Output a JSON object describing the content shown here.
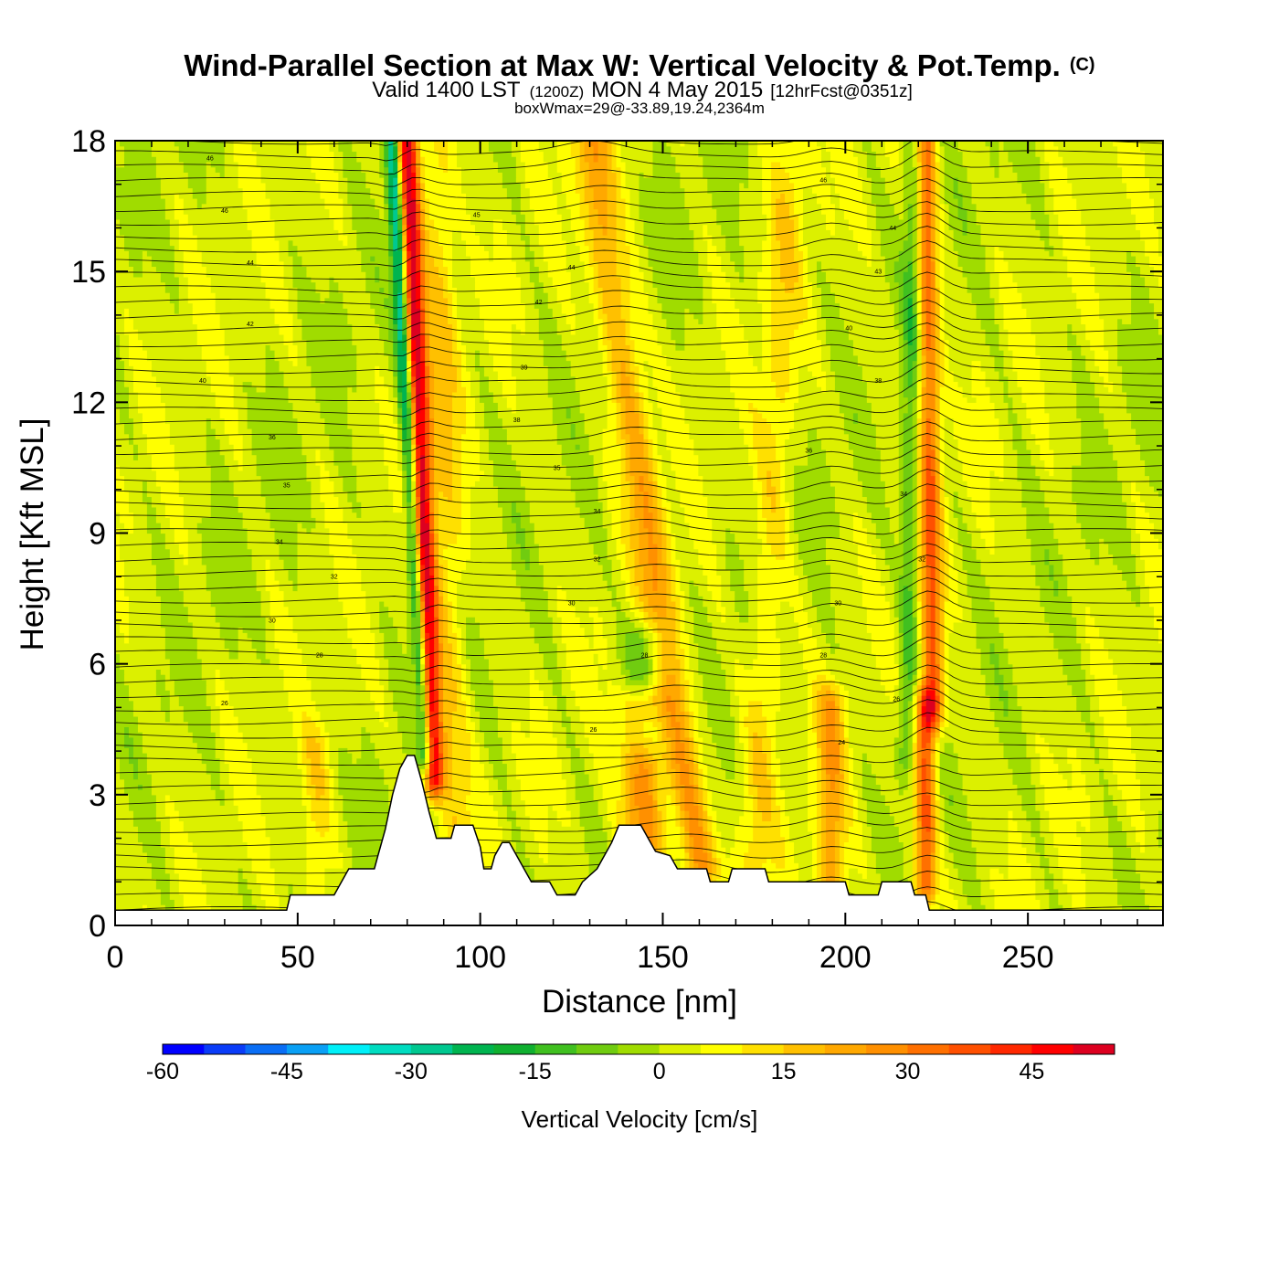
{
  "chart_data": {
    "type": "heatmap",
    "title": "Wind-Parallel Section at Max W: Vertical Velocity & Pot.Temp.",
    "title_mark": "(C)",
    "subtitle_main": "Valid 1400 LST",
    "subtitle_utc": "(1200Z)",
    "subtitle_date": "MON 4 May 2015",
    "subtitle_fcst": "[12hrFcst@0351z]",
    "note": "boxWmax=29@-33.89,19.24,2364m",
    "xlabel": "Distance [nm]",
    "ylabel": "Height [Kft MSL]",
    "xlim": [
      0,
      287
    ],
    "ylim": [
      0,
      18
    ],
    "xticks": [
      0,
      50,
      100,
      150,
      200,
      250
    ],
    "yticks": [
      0,
      3,
      6,
      9,
      12,
      15,
      18
    ],
    "xtick_labels": [
      "0",
      "50",
      "100",
      "150",
      "200",
      "250"
    ],
    "ytick_labels": [
      "0",
      "3",
      "6",
      "9",
      "12",
      "15",
      "18"
    ],
    "colorbar": {
      "title": "Vertical Velocity [cm/s]",
      "min": -60,
      "max": 55,
      "step": 5,
      "tick_values": [
        -60,
        -45,
        -30,
        -15,
        0,
        15,
        30,
        45
      ],
      "tick_labels": [
        "-60",
        "-45",
        "-30",
        "-15",
        "0",
        "15",
        "30",
        "45"
      ],
      "colors": [
        "#0000ff",
        "#0a3cf8",
        "#0a6ef5",
        "#0aa0f5",
        "#00f0f8",
        "#00dcc0",
        "#00c890",
        "#00b450",
        "#10b030",
        "#40c020",
        "#70cc10",
        "#a0dc00",
        "#dcf000",
        "#ffff00",
        "#ffe000",
        "#ffc000",
        "#ffa800",
        "#ff9000",
        "#ff7000",
        "#ff5000",
        "#ff2800",
        "#ff0000",
        "#dd0020"
      ]
    },
    "terrain": [
      [
        0,
        0.35
      ],
      [
        47,
        0.35
      ],
      [
        48,
        0.7
      ],
      [
        60,
        0.7
      ],
      [
        62,
        1.0
      ],
      [
        64,
        1.3
      ],
      [
        71,
        1.3
      ],
      [
        72,
        1.6
      ],
      [
        73,
        1.9
      ],
      [
        74,
        2.2
      ],
      [
        75,
        2.6
      ],
      [
        76,
        3.0
      ],
      [
        78,
        3.6
      ],
      [
        80,
        3.9
      ],
      [
        82,
        3.9
      ],
      [
        84,
        3.3
      ],
      [
        86,
        2.6
      ],
      [
        88,
        2.0
      ],
      [
        92,
        2.0
      ],
      [
        93,
        2.3
      ],
      [
        98,
        2.3
      ],
      [
        100,
        1.8
      ],
      [
        101,
        1.3
      ],
      [
        103,
        1.3
      ],
      [
        104,
        1.6
      ],
      [
        106,
        1.9
      ],
      [
        108,
        1.9
      ],
      [
        110,
        1.6
      ],
      [
        112,
        1.3
      ],
      [
        114,
        1.0
      ],
      [
        119,
        1.0
      ],
      [
        121,
        0.7
      ],
      [
        126,
        0.7
      ],
      [
        128,
        1.0
      ],
      [
        132,
        1.3
      ],
      [
        134,
        1.6
      ],
      [
        136,
        1.9
      ],
      [
        138,
        2.3
      ],
      [
        144,
        2.3
      ],
      [
        146,
        2.0
      ],
      [
        148,
        1.7
      ],
      [
        152,
        1.6
      ],
      [
        154,
        1.3
      ],
      [
        162,
        1.3
      ],
      [
        163,
        1.0
      ],
      [
        168,
        1.0
      ],
      [
        169,
        1.3
      ],
      [
        178,
        1.3
      ],
      [
        179,
        1.0
      ],
      [
        200,
        1.0
      ],
      [
        201,
        0.7
      ],
      [
        209,
        0.7
      ],
      [
        210,
        1.0
      ],
      [
        218,
        1.0
      ],
      [
        219,
        0.7
      ],
      [
        222,
        0.7
      ],
      [
        223,
        0.35
      ],
      [
        287,
        0.35
      ]
    ],
    "features": [
      {
        "x_base": 87,
        "x_top": 80,
        "z_bottom": 3.5,
        "z_top": 18,
        "w_max": 52,
        "sigma_nm": 3.0
      },
      {
        "x_base": 85,
        "x_top": 76,
        "z_bottom": 4,
        "z_top": 18,
        "w_max": -38,
        "sigma_nm": 2.0
      },
      {
        "x_base": 93,
        "x_top": 88,
        "z_bottom": 2,
        "z_top": 18,
        "w_max": 12,
        "sigma_nm": 5
      },
      {
        "x_base": 145,
        "x_top": 145,
        "z_bottom": 1.5,
        "z_top": 5,
        "w_max": 28,
        "sigma_nm": 6
      },
      {
        "x_base": 160,
        "x_top": 130,
        "z_bottom": 1.5,
        "z_top": 18,
        "w_max": 22,
        "sigma_nm": 5
      },
      {
        "x_base": 146,
        "x_top": 146,
        "z_bottom": 4.5,
        "z_top": 6.5,
        "w_max": -16,
        "sigma_nm": 6
      },
      {
        "x_base": 196,
        "x_top": 196,
        "z_bottom": 1,
        "z_top": 5,
        "w_max": 20,
        "sigma_nm": 4
      },
      {
        "x_base": 222,
        "x_top": 222,
        "z_bottom": 1,
        "z_top": 5,
        "w_max": 34,
        "sigma_nm": 3
      },
      {
        "x_base": 224,
        "x_top": 222,
        "z_bottom": 5,
        "z_top": 18,
        "w_max": 32,
        "sigma_nm": 3
      },
      {
        "x_base": 217,
        "x_top": 219,
        "z_bottom": 4,
        "z_top": 18,
        "w_max": -14,
        "sigma_nm": 2.5
      },
      {
        "x_base": 175,
        "x_top": 185,
        "z_bottom": 1,
        "z_top": 18,
        "w_max": 10,
        "sigma_nm": 5
      },
      {
        "x_base": 55,
        "x_top": 55,
        "z_bottom": 0.7,
        "z_top": 4,
        "w_max": 10,
        "sigma_nm": 4
      }
    ],
    "theta_contour_step_c": 1,
    "theta_contours_labeled": [
      {
        "value": "46",
        "x": 26,
        "z": 17.6
      },
      {
        "value": "45",
        "x": 99,
        "z": 16.3
      },
      {
        "value": "46",
        "x": 194,
        "z": 17.1
      },
      {
        "value": "46",
        "x": 30,
        "z": 16.4
      },
      {
        "value": "44",
        "x": 213,
        "z": 16.0
      },
      {
        "value": "44",
        "x": 125,
        "z": 15.1
      },
      {
        "value": "44",
        "x": 37,
        "z": 15.2
      },
      {
        "value": "43",
        "x": 209,
        "z": 15.0
      },
      {
        "value": "42",
        "x": 116,
        "z": 14.3
      },
      {
        "value": "42",
        "x": 37,
        "z": 13.8
      },
      {
        "value": "40",
        "x": 201,
        "z": 13.7
      },
      {
        "value": "40",
        "x": 24,
        "z": 12.5
      },
      {
        "value": "39",
        "x": 112,
        "z": 12.8
      },
      {
        "value": "38",
        "x": 209,
        "z": 12.5
      },
      {
        "value": "38",
        "x": 110,
        "z": 11.6
      },
      {
        "value": "36",
        "x": 43,
        "z": 11.2
      },
      {
        "value": "36",
        "x": 190,
        "z": 10.9
      },
      {
        "value": "35",
        "x": 47,
        "z": 10.1
      },
      {
        "value": "35",
        "x": 121,
        "z": 10.5
      },
      {
        "value": "34",
        "x": 216,
        "z": 9.9
      },
      {
        "value": "34",
        "x": 132,
        "z": 9.5
      },
      {
        "value": "34",
        "x": 45,
        "z": 8.8
      },
      {
        "value": "32",
        "x": 221,
        "z": 8.4
      },
      {
        "value": "32",
        "x": 132,
        "z": 8.4
      },
      {
        "value": "32",
        "x": 60,
        "z": 8.0
      },
      {
        "value": "30",
        "x": 125,
        "z": 7.4
      },
      {
        "value": "30",
        "x": 198,
        "z": 7.4
      },
      {
        "value": "30",
        "x": 43,
        "z": 7.0
      },
      {
        "value": "28",
        "x": 56,
        "z": 6.2
      },
      {
        "value": "28",
        "x": 145,
        "z": 6.2
      },
      {
        "value": "28",
        "x": 194,
        "z": 6.2
      },
      {
        "value": "26",
        "x": 30,
        "z": 5.1
      },
      {
        "value": "26",
        "x": 214,
        "z": 5.2
      },
      {
        "value": "26",
        "x": 131,
        "z": 4.5
      },
      {
        "value": "24",
        "x": 199,
        "z": 4.2
      }
    ]
  }
}
